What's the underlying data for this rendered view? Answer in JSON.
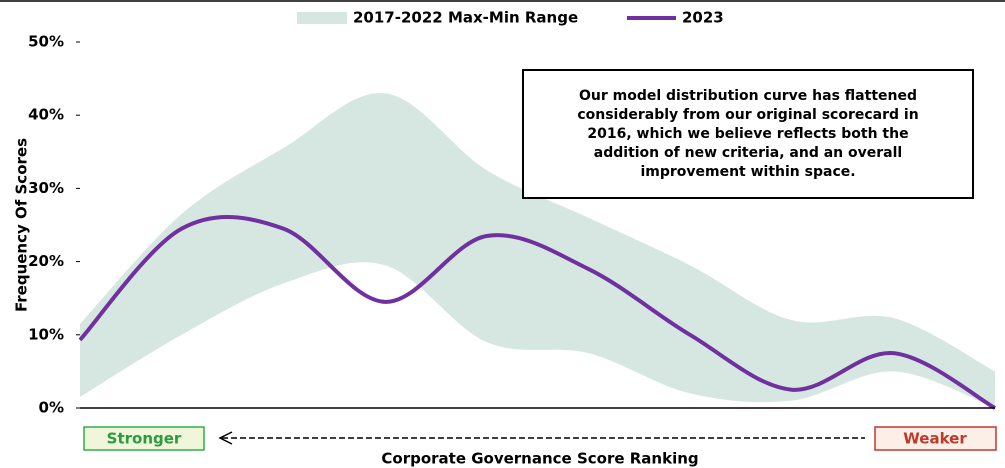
{
  "chart_data": {
    "type": "line",
    "y_label": "Frequency Of Scores",
    "x_label": "Corporate Governance Score Ranking",
    "left_label": "Stronger",
    "right_label": "Weaker",
    "annotation": [
      "Our model distribution curve has flattened",
      "considerably from our original scorecard in",
      "2016, which we believe reflects both the",
      "addition of new criteria, and an overall",
      "improvement within space."
    ],
    "categories": [
      null,
      null,
      null,
      null,
      null,
      null,
      null,
      null,
      null,
      null
    ],
    "series": [
      {
        "name": "2017-2022 Max-Min Range",
        "color": "#d6e7e1",
        "upper": [
          11.5,
          26.5,
          35.5,
          43,
          32.5,
          26,
          19.5,
          12,
          12.3,
          5
        ],
        "lower": [
          1.5,
          10,
          17,
          19.5,
          9,
          7.5,
          2,
          1,
          5,
          0
        ]
      },
      {
        "name": "2023",
        "color": "#7030a0",
        "values": [
          9.3,
          24.5,
          24.5,
          14.5,
          23.5,
          19,
          10,
          2.5,
          7.5,
          0
        ]
      }
    ],
    "ylim": [
      0,
      50
    ],
    "yticks": [
      {
        "value": 0,
        "label": "0%"
      },
      {
        "value": 10,
        "label": "10%"
      },
      {
        "value": 20,
        "label": "20%"
      },
      {
        "value": 30,
        "label": "30%"
      },
      {
        "value": 40,
        "label": "40%"
      },
      {
        "value": 50,
        "label": "50%"
      }
    ],
    "legend": "top"
  }
}
